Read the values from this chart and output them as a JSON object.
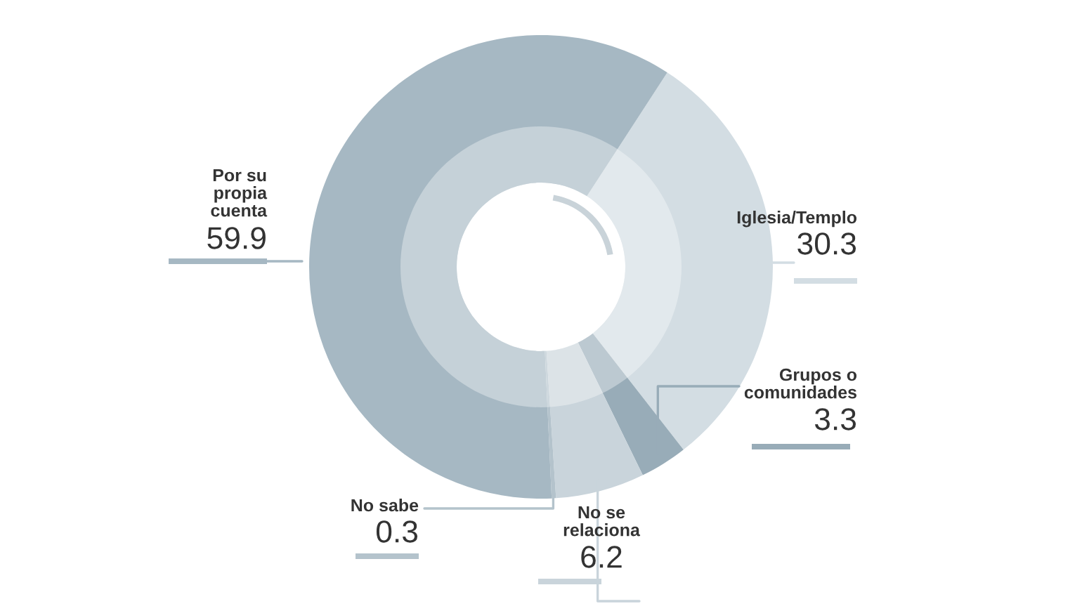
{
  "chart_data": {
    "type": "donut",
    "categories": [
      "Iglesia/Templo",
      "Grupos o\ncomunidades",
      "No se\nrelaciona",
      "No sabe",
      "Por su\npropia\ncuenta"
    ],
    "values": [
      30.3,
      3.3,
      6.2,
      0.3,
      59.9
    ],
    "colors": [
      "#d3dde3",
      "#98acb8",
      "#c9d4db",
      "#b4c3cc",
      "#a6b8c3"
    ],
    "data_labels": true
  }
}
